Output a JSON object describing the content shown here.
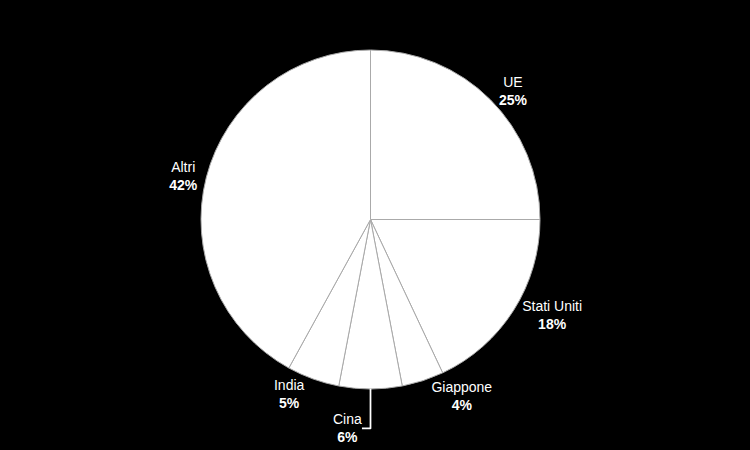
{
  "chart_data": {
    "type": "pie",
    "categories": [
      "UE",
      "Stati Uniti",
      "Giappone",
      "Cina",
      "India",
      "Altri"
    ],
    "values": [
      25,
      18,
      4,
      6,
      5,
      42
    ],
    "value_labels": [
      "25%",
      "18%",
      "4%",
      "6%",
      "5%",
      "42%"
    ],
    "color": "#ffffff",
    "data_labels": true
  }
}
